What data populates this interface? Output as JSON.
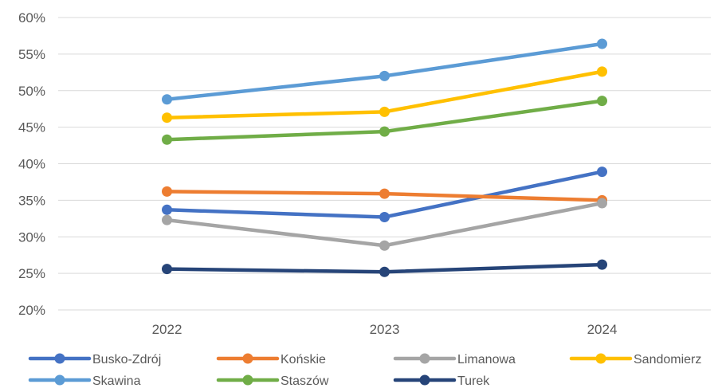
{
  "chart_data": {
    "type": "line",
    "categories": [
      "2022",
      "2023",
      "2024"
    ],
    "y_ticks": [
      "20%",
      "25%",
      "30%",
      "35%",
      "40%",
      "45%",
      "50%",
      "55%",
      "60%"
    ],
    "ylim": [
      20,
      60
    ],
    "grid": true,
    "legend_position": "bottom",
    "series": [
      {
        "name": "Busko-Zdrój",
        "color": "#4472C4",
        "values": [
          33.7,
          32.7,
          38.9
        ]
      },
      {
        "name": "Końskie",
        "color": "#ED7D31",
        "values": [
          36.2,
          35.9,
          35.0
        ]
      },
      {
        "name": "Limanowa",
        "color": "#A5A5A5",
        "values": [
          32.3,
          28.8,
          34.6
        ]
      },
      {
        "name": "Sandomierz",
        "color": "#FFC000",
        "values": [
          46.3,
          47.1,
          52.6
        ]
      },
      {
        "name": "Skawina",
        "color": "#5B9BD5",
        "values": [
          48.8,
          52.0,
          56.4
        ]
      },
      {
        "name": "Staszów",
        "color": "#70AD47",
        "values": [
          43.3,
          44.4,
          48.6
        ]
      },
      {
        "name": "Turek",
        "color": "#264478",
        "values": [
          25.6,
          25.2,
          26.2
        ]
      }
    ]
  }
}
